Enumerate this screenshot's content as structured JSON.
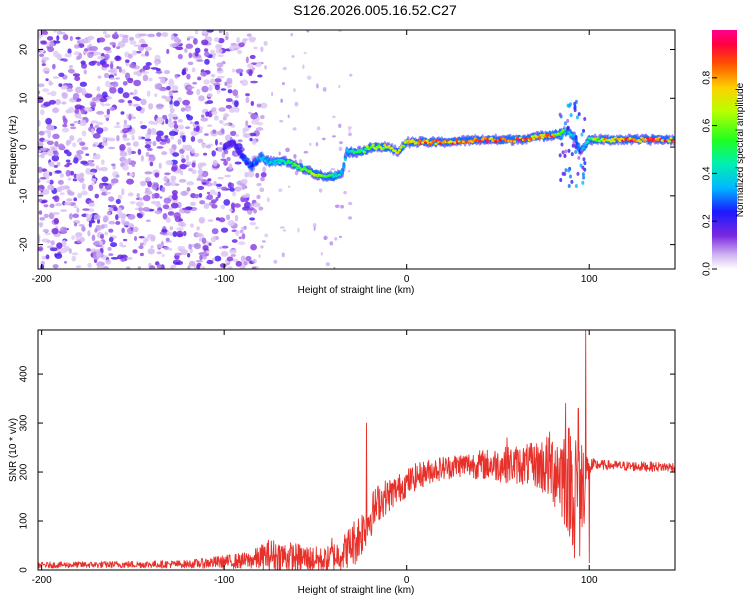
{
  "title": "S126.2026.005.16.52.C27",
  "chart_data": [
    {
      "type": "heatmap",
      "name": "spectrogram",
      "xlabel": "Height of straight line (km)",
      "ylabel": "Frequency (Hz)",
      "xlim": [
        -202,
        147
      ],
      "ylim": [
        -25,
        24
      ],
      "xticks": [
        -200,
        -100,
        0,
        100
      ],
      "yticks": [
        -20,
        -10,
        0,
        10,
        20
      ],
      "colorbar": {
        "label": "Normalized spectral amplitude",
        "range": [
          0,
          1
        ],
        "ticks": [
          0.0,
          0.2,
          0.4,
          0.6,
          0.8
        ]
      },
      "ridge": {
        "x": [
          -100,
          -95,
          -90,
          -85,
          -80,
          -75,
          -70,
          -65,
          -60,
          -55,
          -50,
          -45,
          -40,
          -35,
          -33,
          -30,
          -25,
          -20,
          -15,
          -10,
          -5,
          0,
          5,
          10,
          20,
          40,
          60,
          80,
          85,
          88,
          92,
          95,
          100,
          110,
          130,
          147
        ],
        "freq": [
          0,
          1,
          -2,
          -4,
          -2,
          -3,
          -3,
          -3,
          -4,
          -4.5,
          -5.5,
          -6,
          -6,
          -5,
          -1,
          -1,
          -1,
          0,
          0,
          0,
          -1,
          1,
          1,
          1,
          1,
          1.5,
          1.5,
          2.5,
          3,
          3.5,
          2,
          -1,
          1.5,
          1.5,
          1.5,
          1.5
        ],
        "amplitude": [
          0.2,
          0.2,
          0.25,
          0.3,
          0.35,
          0.4,
          0.45,
          0.5,
          0.55,
          0.6,
          0.65,
          0.6,
          0.5,
          0.4,
          0.4,
          0.45,
          0.55,
          0.65,
          0.7,
          0.75,
          0.7,
          0.75,
          0.8,
          0.85,
          0.85,
          0.9,
          0.9,
          0.85,
          0.6,
          0.5,
          0.4,
          0.3,
          0.6,
          0.8,
          0.9,
          0.9
        ]
      },
      "noise_region": [
        -202,
        -95
      ]
    },
    {
      "type": "line",
      "name": "snr",
      "xlabel": "Height of straight line (km)",
      "ylabel": "SNR (10 * v/v)",
      "xlim": [
        -202,
        147
      ],
      "ylim": [
        0,
        490
      ],
      "xticks": [
        -200,
        -100,
        0,
        100
      ],
      "yticks": [
        0,
        100,
        200,
        300,
        400
      ],
      "color": "#e8302a",
      "envelope": {
        "x": [
          -202,
          -120,
          -85,
          -75,
          -60,
          -45,
          -35,
          -28,
          -25,
          -20,
          -15,
          -5,
          5,
          15,
          30,
          50,
          60,
          70,
          80,
          85,
          95,
          100,
          105,
          120,
          147
        ],
        "base": [
          10,
          12,
          20,
          30,
          25,
          20,
          35,
          60,
          75,
          110,
          140,
          165,
          190,
          205,
          215,
          215,
          215,
          215,
          210,
          200,
          160,
          210,
          215,
          212,
          210
        ],
        "noise": [
          6,
          8,
          18,
          35,
          30,
          25,
          35,
          50,
          50,
          45,
          40,
          30,
          28,
          25,
          25,
          35,
          40,
          45,
          80,
          100,
          150,
          20,
          10,
          10,
          10
        ]
      },
      "spikes": [
        {
          "x": -22,
          "y": 300
        },
        {
          "x": -41,
          "y": 65
        },
        {
          "x": 55,
          "y": 270
        },
        {
          "x": 87,
          "y": 340
        },
        {
          "x": 94,
          "y": 330
        },
        {
          "x": 98,
          "y": 488
        },
        {
          "x": 100,
          "y": 15
        },
        {
          "x": 92,
          "y": 25
        }
      ]
    }
  ]
}
